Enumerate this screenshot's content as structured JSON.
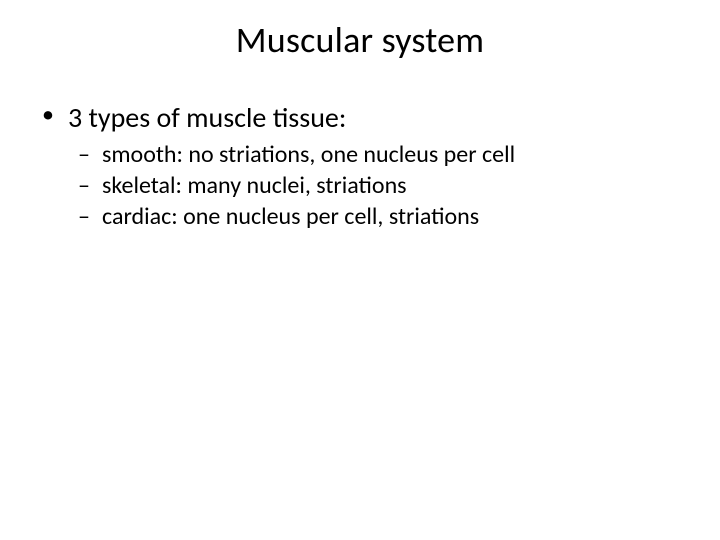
{
  "slide": {
    "background_color": "#ffffff",
    "text_color": "#000000",
    "font_family": "Calibri",
    "title": {
      "text": "Muscular system",
      "fontsize": 36,
      "align": "center",
      "weight": "normal"
    },
    "body": {
      "level1_fontsize": 28,
      "level2_fontsize": 24,
      "level1_bullet": "•",
      "level2_bullet": "–",
      "items": [
        {
          "text": "3 types of muscle tissue:",
          "children": [
            {
              "text": "smooth: no striations, one nucleus per cell"
            },
            {
              "text": "skeletal: many nuclei, striations"
            },
            {
              "text": "cardiac: one nucleus per cell, striations"
            }
          ]
        }
      ]
    }
  }
}
